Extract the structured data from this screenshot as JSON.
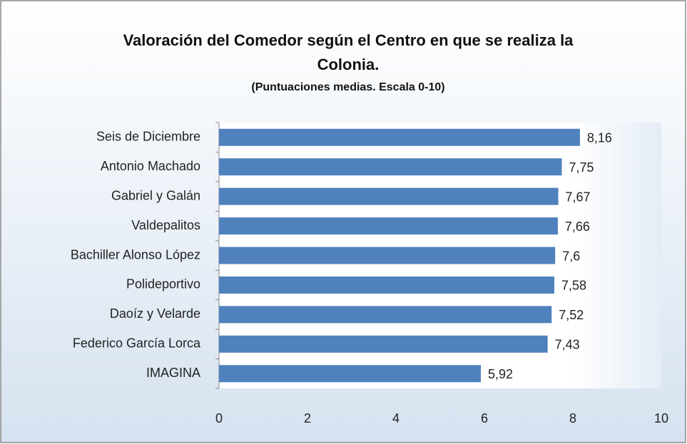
{
  "chart_data": {
    "type": "bar",
    "orientation": "horizontal",
    "title": "Valoración del Comedor según el Centro en que se realiza la Colonia.",
    "subtitle": "(Puntuaciones medias. Escala 0-10)",
    "categories": [
      "Seis de Diciembre",
      "Antonio Machado",
      "Gabriel y Galán",
      "Valdepalitos",
      "Bachiller Alonso López",
      "Polideportivo",
      "Daoíz y Velarde",
      "Federico García Lorca",
      "IMAGINA"
    ],
    "values": [
      8.16,
      7.75,
      7.67,
      7.66,
      7.6,
      7.58,
      7.52,
      7.43,
      5.92
    ],
    "value_labels": [
      "8,16",
      "7,75",
      "7,67",
      "7,66",
      "7,6",
      "7,58",
      "7,52",
      "7,43",
      "5,92"
    ],
    "color": "#4f81bd",
    "xlim": [
      0,
      10
    ],
    "xticks": [
      0,
      2,
      4,
      6,
      8,
      10
    ],
    "grid": false
  }
}
